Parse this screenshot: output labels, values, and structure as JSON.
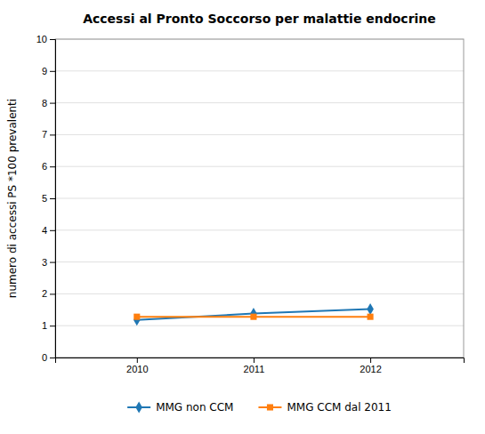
{
  "chart_data": {
    "type": "line",
    "title": "Accessi al Pronto Soccorso per malattie endocrine",
    "y_label": "numero di accessi PS *100 prevalenti",
    "x": [
      2010,
      2011,
      2012
    ],
    "series": [
      {
        "name": "MMG non CCM",
        "values": [
          1.18,
          1.38,
          1.52
        ],
        "marker": "diamond"
      },
      {
        "name": "MMG CCM dal 2011",
        "values": [
          1.28,
          1.28,
          1.28
        ],
        "marker": "square"
      }
    ],
    "xlim": [
      2009.3,
      2012.8
    ],
    "xticks": [
      2010,
      2011,
      2012
    ],
    "ylim": [
      0,
      10
    ],
    "yticks": [
      0,
      1,
      2,
      3,
      4,
      5,
      6,
      7,
      8,
      9,
      10
    ],
    "grid": "y",
    "legend": "bottom"
  }
}
